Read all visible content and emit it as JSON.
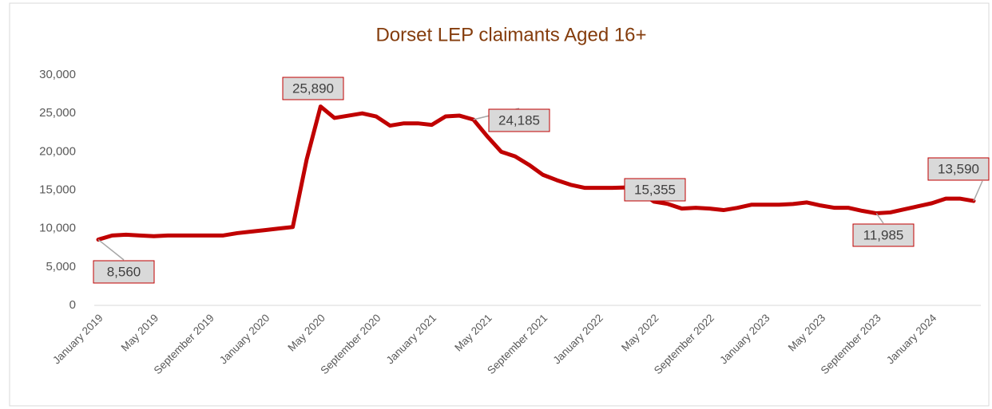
{
  "chart_data": {
    "type": "line",
    "title": "Dorset LEP claimants Aged 16+",
    "categories": [
      "January 2019",
      null,
      null,
      null,
      "May 2019",
      null,
      null,
      null,
      "September 2019",
      null,
      null,
      null,
      "January 2020",
      null,
      null,
      null,
      "May 2020",
      null,
      null,
      null,
      "September 2020",
      null,
      null,
      null,
      "January 2021",
      null,
      null,
      null,
      "May 2021",
      null,
      null,
      null,
      "September 2021",
      null,
      null,
      null,
      "January 2022",
      null,
      null,
      null,
      "May 2022",
      null,
      null,
      null,
      "September 2022",
      null,
      null,
      null,
      "January 2023",
      null,
      null,
      null,
      "May 2023",
      null,
      null,
      null,
      "September 2023",
      null,
      null,
      null,
      "January 2024",
      null,
      null,
      null
    ],
    "series": [
      {
        "name": "Dorset LEP claimants Aged 16+",
        "color": "#c00000",
        "values": [
          8560,
          9100,
          9200,
          9100,
          9000,
          9100,
          9100,
          9100,
          9100,
          9100,
          9400,
          9600,
          9800,
          10000,
          10200,
          19000,
          25890,
          24400,
          24700,
          25000,
          24600,
          23400,
          23700,
          23700,
          23500,
          24600,
          24700,
          24185,
          22000,
          20000,
          19400,
          18300,
          17000,
          16300,
          15700,
          15300,
          15300,
          15300,
          15355,
          14800,
          13500,
          13200,
          12600,
          12700,
          12600,
          12400,
          12700,
          13100,
          13100,
          13100,
          13200,
          13400,
          13000,
          12700,
          12700,
          12300,
          11985,
          12100,
          12500,
          12900,
          13300,
          13900,
          13900,
          13590
        ],
        "value_labels": [
          "8,560",
          null,
          null,
          null,
          null,
          null,
          null,
          null,
          null,
          null,
          null,
          null,
          null,
          null,
          null,
          null,
          "25,890",
          null,
          null,
          null,
          null,
          null,
          null,
          null,
          null,
          null,
          null,
          "24,185",
          null,
          null,
          null,
          null,
          null,
          null,
          null,
          null,
          null,
          null,
          "15,355",
          null,
          null,
          null,
          null,
          null,
          null,
          null,
          null,
          null,
          null,
          null,
          null,
          null,
          null,
          null,
          null,
          null,
          "11,985",
          null,
          null,
          null,
          null,
          null,
          null,
          "13,590"
        ]
      }
    ],
    "ylim": [
      0,
      30000
    ],
    "yticks": [
      0,
      {
        "value": 5000,
        "label": "5,000"
      },
      {
        "value": 10000,
        "label": "10,000"
      },
      {
        "value": 15000,
        "label": "15,000"
      },
      {
        "value": 20000,
        "label": "20,000"
      },
      {
        "value": 25000,
        "label": "25,000"
      },
      {
        "value": 30000,
        "label": "30,000"
      }
    ],
    "grid": false
  }
}
